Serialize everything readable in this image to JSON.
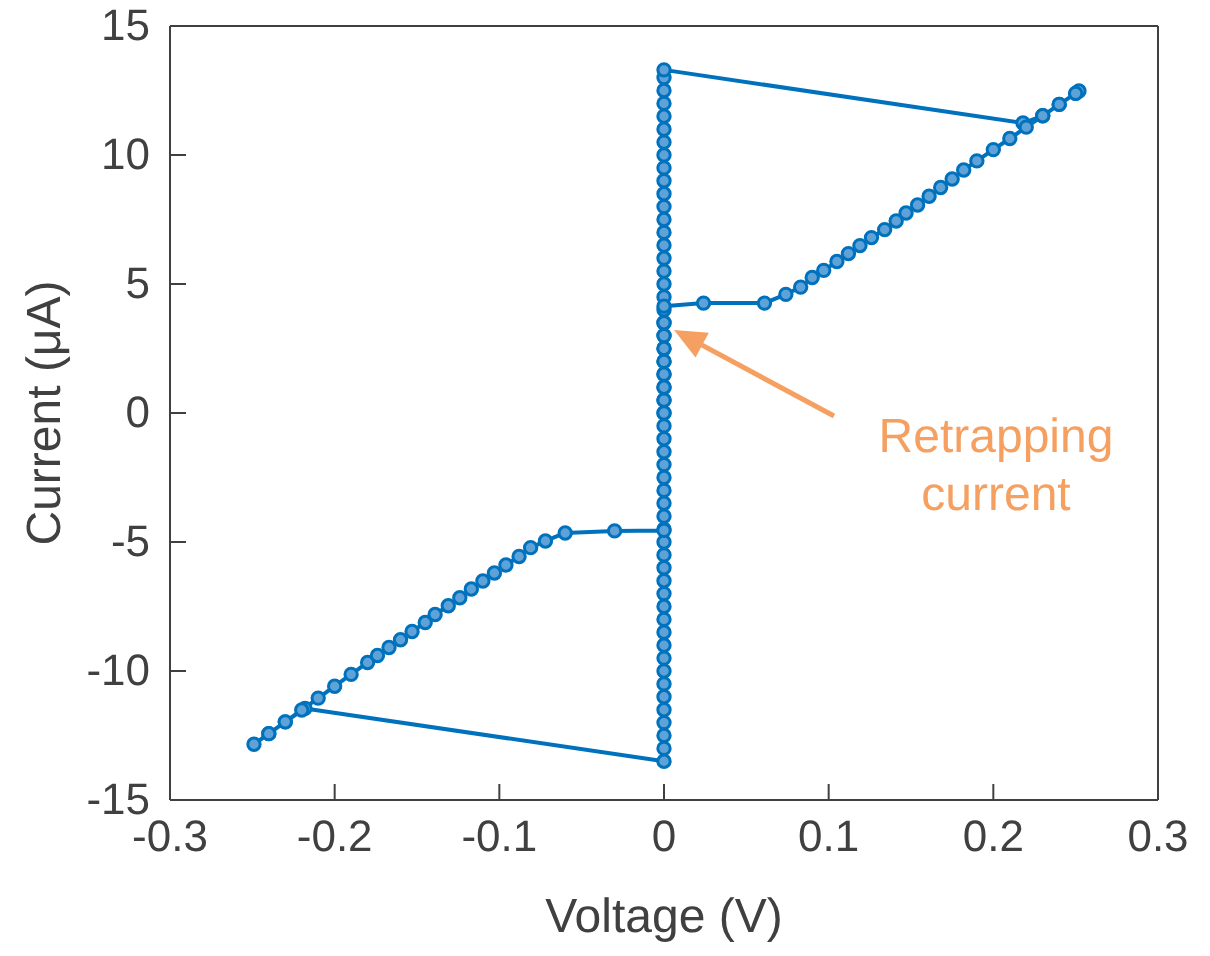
{
  "chart_data": {
    "type": "line",
    "xlabel": "Voltage (V)",
    "ylabel": "Current (μA)",
    "xlim": [
      -0.3,
      0.3
    ],
    "xticks": [
      -0.3,
      -0.2,
      -0.1,
      0,
      0.1,
      0.2,
      0.3
    ],
    "ylim": [
      -15,
      15
    ],
    "yticks": [
      -15,
      -10,
      -5,
      0,
      5,
      10,
      15
    ],
    "marker": "circle",
    "line_style": "solid",
    "annotations": [
      "Retrapping current"
    ],
    "series": [
      {
        "color": "#0072bd",
        "x": [
          0,
          0,
          0,
          0,
          0,
          0,
          0,
          0,
          0,
          0,
          0,
          0,
          0,
          0,
          0,
          0,
          0,
          0,
          0,
          0,
          0,
          0,
          0,
          0,
          0,
          0,
          0,
          0,
          0.218,
          0.23,
          0.24,
          0.25,
          0.252,
          0.25,
          0.24,
          0.23,
          0.22,
          0.21,
          0.2,
          0.19,
          0.182,
          0.175,
          0.168,
          0.161,
          0.154,
          0.147,
          0.141,
          0.134,
          0.126,
          0.119,
          0.112,
          0.105,
          0.097,
          0.09,
          0.083,
          0.074,
          0.061,
          0.024,
          0,
          0,
          0,
          0,
          0,
          0,
          0,
          0,
          0,
          0,
          0,
          0,
          0,
          0,
          0,
          0,
          0,
          0,
          0,
          0,
          0,
          0,
          0,
          0,
          0,
          0,
          0,
          0,
          0,
          0,
          0,
          0,
          0,
          0,
          0,
          0,
          -0.218,
          -0.23,
          -0.24,
          -0.249,
          -0.24,
          -0.23,
          -0.22,
          -0.21,
          -0.2,
          -0.19,
          -0.18,
          -0.174,
          -0.167,
          -0.16,
          -0.153,
          -0.145,
          -0.139,
          -0.131,
          -0.124,
          -0.117,
          -0.11,
          -0.103,
          -0.096,
          -0.088,
          -0.081,
          -0.072,
          -0.06,
          -0.03,
          0
        ],
        "values": [
          0,
          0.5,
          1,
          1.5,
          2,
          2.5,
          3,
          3.5,
          4,
          4.5,
          5,
          5.5,
          6,
          6.5,
          7,
          7.5,
          8,
          8.5,
          9,
          9.5,
          10,
          10.5,
          11,
          11.5,
          12,
          12.5,
          13,
          13.3,
          11.24,
          11.52,
          11.96,
          12.39,
          12.48,
          12.39,
          11.96,
          11.52,
          11.08,
          10.64,
          10.21,
          9.77,
          9.42,
          9.07,
          8.74,
          8.4,
          8.06,
          7.75,
          7.44,
          7.11,
          6.8,
          6.49,
          6.18,
          5.87,
          5.53,
          5.25,
          4.88,
          4.6,
          4.26,
          4.26,
          4.14,
          3.5,
          3,
          2.5,
          2,
          1.5,
          1,
          0.5,
          0,
          -0.5,
          -1,
          -1.5,
          -2,
          -2.5,
          -3,
          -3.5,
          -4,
          -4.5,
          -5,
          -5.5,
          -6,
          -6.5,
          -7,
          -7.5,
          -8,
          -8.5,
          -9,
          -9.5,
          -10,
          -10.5,
          -11,
          -11.5,
          -12,
          -12.5,
          -13,
          -13.5,
          -11.45,
          -11.97,
          -12.43,
          -12.84,
          -12.43,
          -11.97,
          -11.51,
          -11.05,
          -10.59,
          -10.13,
          -9.67,
          -9.4,
          -9.09,
          -8.79,
          -8.47,
          -8.12,
          -7.81,
          -7.47,
          -7.16,
          -6.82,
          -6.51,
          -6.2,
          -5.89,
          -5.56,
          -5.22,
          -4.96,
          -4.65,
          -4.57,
          -4.55
        ]
      }
    ]
  }
}
